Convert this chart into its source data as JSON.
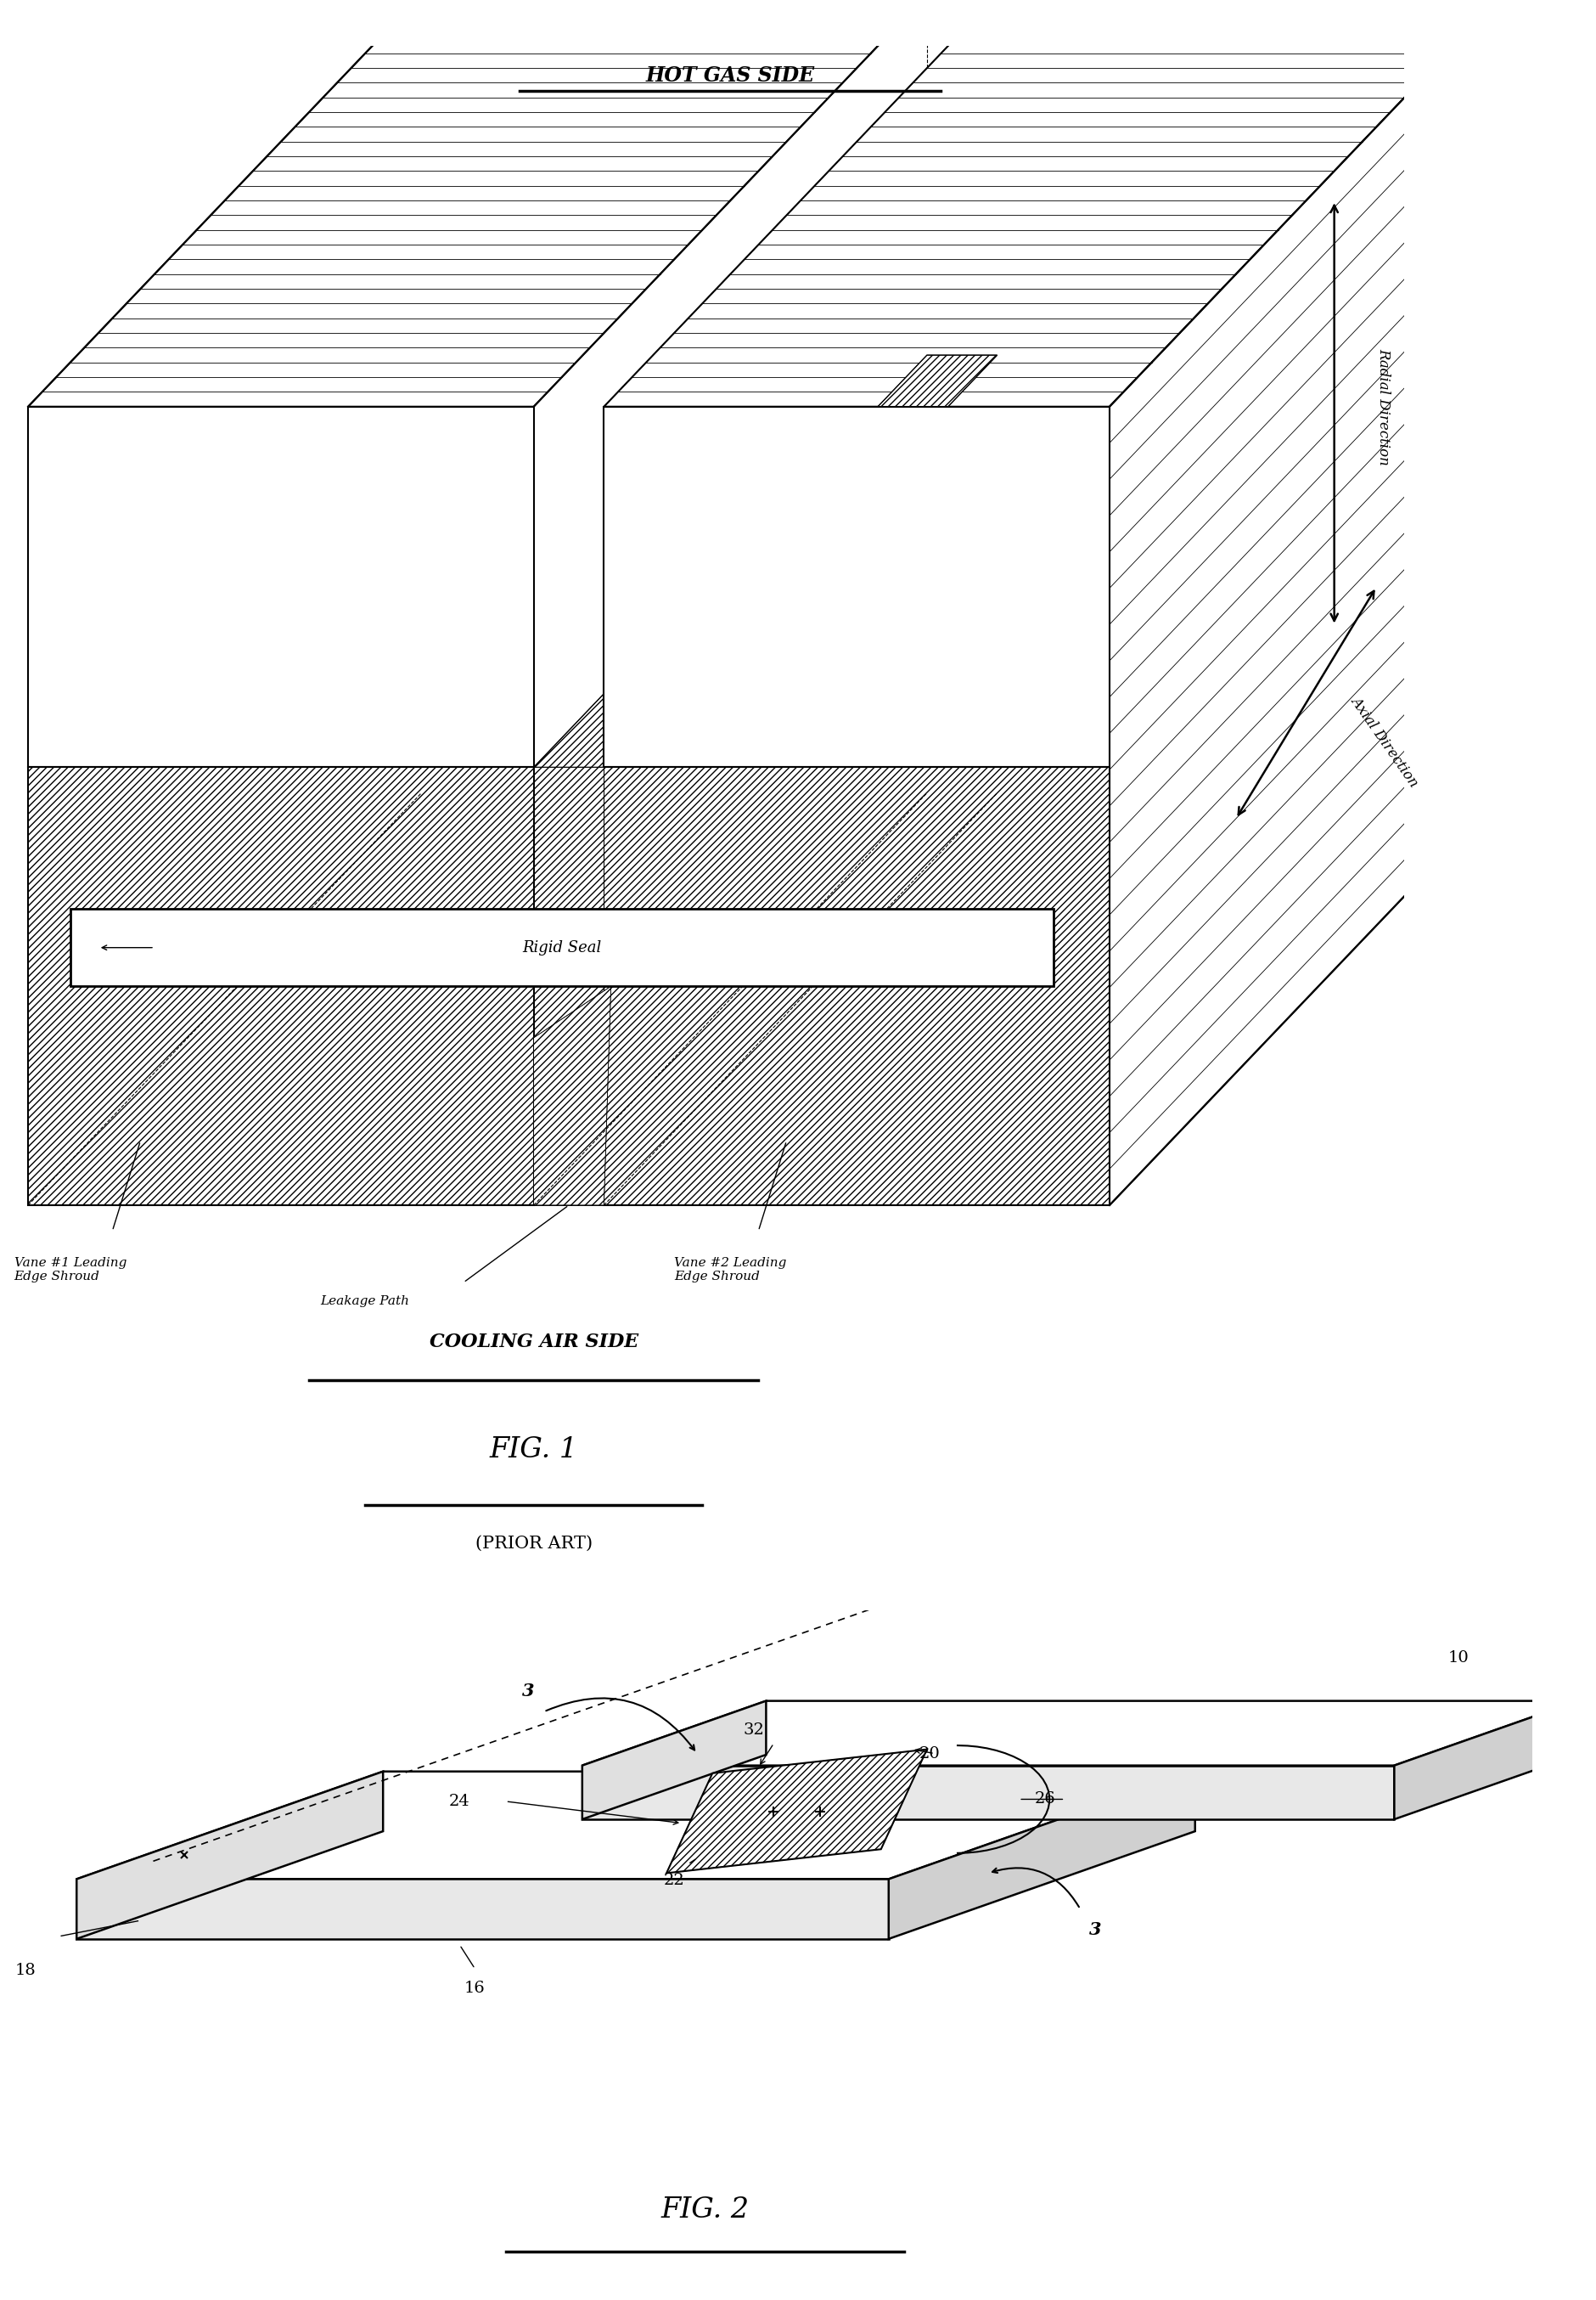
{
  "fig_width": 18.8,
  "fig_height": 27.08,
  "bg_color": "#ffffff",
  "title_fig1": "FIG. 1",
  "subtitle_fig1": "(PRIOR ART)",
  "title_fig2": "FIG. 2",
  "label_hot_gas": "HOT GAS SIDE",
  "label_cooling_air": "COOLING AIR SIDE",
  "label_radial": "Radial Direction",
  "label_axial": "Axial Direction",
  "label_rigid_seal": "Rigid Seal",
  "label_vane1": "Vane #1 Leading\nEdge Shroud",
  "label_vane2": "Vane #2 Leading\nEdge Shroud",
  "label_leakage": "Leakage Path"
}
